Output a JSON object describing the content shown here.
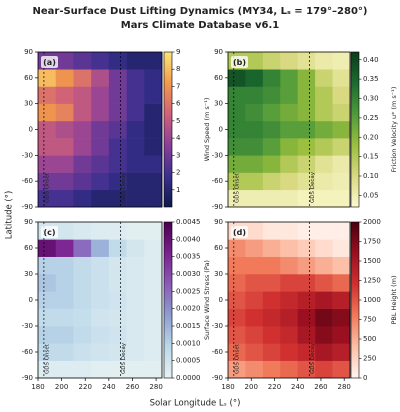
{
  "figure": {
    "title": "Near-Surface Dust Lifting Dynamics (MY34, Lₛ = 179°–280°)",
    "subtitle": "Mars Climate Database v6.1",
    "xlabel": "Solar Longitude Lₛ (°)",
    "ylabel": "Latitude (°)"
  },
  "chart_data": [
    {
      "type": "heatmap",
      "label": "(a)",
      "x": [
        180,
        195,
        210,
        225,
        240,
        255,
        270,
        285
      ],
      "y": [
        -90,
        -70,
        -50,
        -30,
        -10,
        10,
        30,
        50,
        70,
        90
      ],
      "z": [
        [
          2,
          2,
          1.5,
          1,
          1,
          1,
          1
        ],
        [
          3,
          3,
          2.5,
          2,
          1.5,
          1,
          1
        ],
        [
          4,
          4,
          3,
          2.5,
          2,
          1.5,
          1.5
        ],
        [
          5,
          5,
          4,
          3,
          2,
          1.5,
          1
        ],
        [
          5,
          4.5,
          4,
          3,
          2.5,
          1.5,
          1
        ],
        [
          7,
          6.5,
          5,
          4,
          3,
          2,
          1
        ],
        [
          6,
          5.5,
          5,
          4,
          3,
          2,
          1.5
        ],
        [
          8,
          7,
          6,
          4.5,
          3,
          2,
          1.5
        ],
        [
          3,
          3,
          2.5,
          2,
          1.5,
          1,
          1
        ]
      ],
      "xlim": [
        180,
        285
      ],
      "ylim": [
        -90,
        90
      ],
      "yticks": [
        -90,
        -60,
        -30,
        0,
        30,
        60,
        90
      ],
      "zlim": [
        0,
        9
      ],
      "zticks": [
        1,
        2,
        3,
        4,
        5,
        6,
        7,
        8,
        9
      ],
      "colorbar_label": "Wind Speed (m s⁻¹)",
      "colormap": [
        "#0c1a4a",
        "#3b2f8f",
        "#8a3f9a",
        "#d0607a",
        "#f39a4a",
        "#fbe67a"
      ],
      "annotations": [
        {
          "x": 185,
          "text": "GDS Onset"
        },
        {
          "x": 250,
          "text": "GDS Decay"
        }
      ]
    },
    {
      "type": "heatmap",
      "label": "(b)",
      "x": [
        180,
        195,
        210,
        225,
        240,
        255,
        270,
        285
      ],
      "y": [
        -90,
        -70,
        -50,
        -30,
        -10,
        10,
        30,
        50,
        70,
        90
      ],
      "z": [
        [
          0.05,
          0.05,
          0.05,
          0.05,
          0.04,
          0.04,
          0.04
        ],
        [
          0.15,
          0.15,
          0.12,
          0.1,
          0.08,
          0.06,
          0.05
        ],
        [
          0.22,
          0.22,
          0.2,
          0.15,
          0.12,
          0.08,
          0.06
        ],
        [
          0.28,
          0.28,
          0.25,
          0.2,
          0.18,
          0.15,
          0.12
        ],
        [
          0.3,
          0.3,
          0.28,
          0.25,
          0.25,
          0.22,
          0.2
        ],
        [
          0.3,
          0.28,
          0.25,
          0.22,
          0.2,
          0.15,
          0.12
        ],
        [
          0.3,
          0.3,
          0.28,
          0.25,
          0.2,
          0.15,
          0.1
        ],
        [
          0.38,
          0.35,
          0.3,
          0.25,
          0.2,
          0.12,
          0.08
        ],
        [
          0.15,
          0.15,
          0.12,
          0.1,
          0.08,
          0.06,
          0.05
        ]
      ],
      "xlim": [
        180,
        285
      ],
      "ylim": [
        -90,
        90
      ],
      "yticks": [
        -90,
        -60,
        -30,
        0,
        30,
        60,
        90
      ],
      "zlim": [
        0.02,
        0.42
      ],
      "zticks": [
        {
          "value": 0.05,
          "label": "0.05"
        },
        {
          "value": 0.1,
          "label": "0.10"
        },
        {
          "value": 0.15,
          "label": "0.15"
        },
        {
          "value": 0.2,
          "label": "0.20"
        },
        {
          "value": 0.25,
          "label": "0.25"
        },
        {
          "value": 0.3,
          "label": "0.30"
        },
        {
          "value": 0.35,
          "label": "0.35"
        },
        {
          "value": 0.4,
          "label": "0.40"
        }
      ],
      "colorbar_label": "Friction Velocity u* (m s⁻¹)",
      "colormap": [
        "#fdfbd0",
        "#d8d980",
        "#9bbf3e",
        "#4e9a3a",
        "#1c6b30",
        "#0b3b1c"
      ],
      "annotations": [
        {
          "x": 185,
          "text": "GDS Onset"
        },
        {
          "x": 250,
          "text": "GDS Decay"
        }
      ]
    },
    {
      "type": "heatmap",
      "label": "(c)",
      "x": [
        180,
        195,
        210,
        225,
        240,
        255,
        270,
        285
      ],
      "y": [
        -90,
        -70,
        -50,
        -30,
        -10,
        10,
        30,
        50,
        70,
        90
      ],
      "z": [
        [
          0.0002,
          0.0002,
          0.0002,
          0.0001,
          0.0001,
          0.0001,
          0.0001
        ],
        [
          0.0008,
          0.0008,
          0.0006,
          0.0005,
          0.0004,
          0.0003,
          0.0002
        ],
        [
          0.001,
          0.001,
          0.0008,
          0.0006,
          0.0005,
          0.0003,
          0.0002
        ],
        [
          0.0008,
          0.0008,
          0.0007,
          0.0005,
          0.0004,
          0.0003,
          0.0002
        ],
        [
          0.001,
          0.001,
          0.0008,
          0.0006,
          0.0005,
          0.0003,
          0.0002
        ],
        [
          0.0012,
          0.001,
          0.0008,
          0.0006,
          0.0004,
          0.0003,
          0.0002
        ],
        [
          0.001,
          0.001,
          0.0008,
          0.0006,
          0.0004,
          0.0003,
          0.0002
        ],
        [
          0.004,
          0.0035,
          0.0025,
          0.0015,
          0.0008,
          0.0004,
          0.0002
        ],
        [
          0.0004,
          0.0004,
          0.0003,
          0.0002,
          0.0002,
          0.0001,
          0.0001
        ]
      ],
      "xlim": [
        180,
        285
      ],
      "ylim": [
        -90,
        90
      ],
      "xticks": [
        180,
        200,
        220,
        240,
        260,
        280
      ],
      "yticks": [
        -90,
        -60,
        -30,
        0,
        30,
        60,
        90
      ],
      "zlim": [
        0,
        0.0045
      ],
      "zticks": [
        {
          "value": 0,
          "label": "0.0000"
        },
        {
          "value": 0.0005,
          "label": "0.0005"
        },
        {
          "value": 0.001,
          "label": "0.0010"
        },
        {
          "value": 0.0015,
          "label": "0.0015"
        },
        {
          "value": 0.002,
          "label": "0.0020"
        },
        {
          "value": 0.0025,
          "label": "0.0025"
        },
        {
          "value": 0.003,
          "label": "0.0030"
        },
        {
          "value": 0.0035,
          "label": "0.0035"
        },
        {
          "value": 0.004,
          "label": "0.0040"
        },
        {
          "value": 0.0045,
          "label": "0.0045"
        }
      ],
      "colorbar_label": "Surface Wind Stress (Pa)",
      "colormap": [
        "#e6f2f2",
        "#bcd8ea",
        "#8c9fd0",
        "#8a5cb8",
        "#7a2090",
        "#4a0050"
      ],
      "annotations": [
        {
          "x": 185,
          "text": "GDS Onset"
        },
        {
          "x": 250,
          "text": "GDS Decay"
        }
      ]
    },
    {
      "type": "heatmap",
      "label": "(d)",
      "x": [
        180,
        195,
        210,
        225,
        240,
        255,
        270,
        285
      ],
      "y": [
        -90,
        -70,
        -50,
        -30,
        -10,
        10,
        30,
        50,
        70,
        90
      ],
      "z": [
        [
          600,
          700,
          800,
          900,
          1000,
          1100,
          1000
        ],
        [
          900,
          1000,
          1100,
          1200,
          1300,
          1500,
          1400
        ],
        [
          1000,
          1100,
          1200,
          1300,
          1500,
          1700,
          1600
        ],
        [
          1100,
          1200,
          1300,
          1400,
          1600,
          1800,
          1700
        ],
        [
          1000,
          1100,
          1200,
          1300,
          1400,
          1500,
          1400
        ],
        [
          900,
          1000,
          1000,
          1100,
          1100,
          1000,
          900
        ],
        [
          800,
          800,
          800,
          700,
          600,
          500,
          400
        ],
        [
          700,
          600,
          500,
          400,
          300,
          200,
          100
        ],
        [
          200,
          200,
          100,
          100,
          50,
          50,
          50
        ]
      ],
      "xlim": [
        180,
        285
      ],
      "ylim": [
        -90,
        90
      ],
      "xticks": [
        180,
        200,
        220,
        240,
        260,
        280
      ],
      "yticks": [
        -90,
        -60,
        -30,
        0,
        30,
        60,
        90
      ],
      "zlim": [
        0,
        2000
      ],
      "zticks": [
        0,
        250,
        500,
        750,
        1000,
        1250,
        1500,
        1750,
        2000
      ],
      "colorbar_label": "PBL Height (m)",
      "colormap": [
        "#fff5f0",
        "#fcc0a8",
        "#f07a5a",
        "#d03030",
        "#9a1020",
        "#4a0010"
      ],
      "annotations": [
        {
          "x": 185,
          "text": "GDS Onset"
        },
        {
          "x": 250,
          "text": "GDS Decay"
        }
      ]
    }
  ]
}
